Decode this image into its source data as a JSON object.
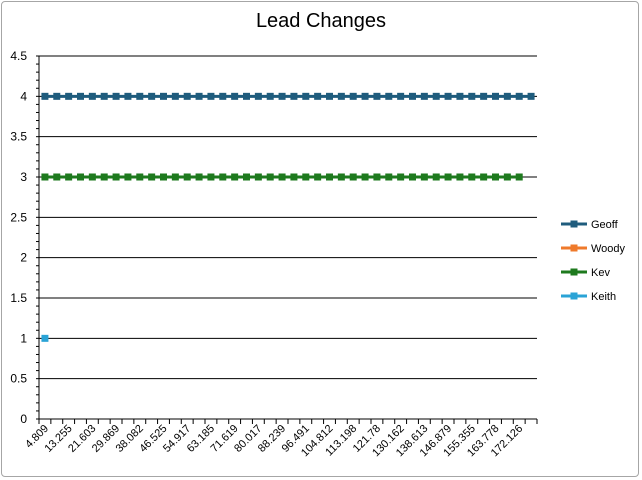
{
  "chart_data": {
    "type": "line",
    "title": "Lead Changes",
    "xlabel": "",
    "ylabel": "",
    "ylim": [
      0,
      4.5
    ],
    "y_ticks": [
      "0",
      "0.5",
      "1",
      "1.5",
      "2",
      "2.5",
      "3",
      "3.5",
      "4",
      "4.5"
    ],
    "x_ticks": [
      "4.809",
      "13.255",
      "21.603",
      "29.869",
      "38.082",
      "46.525",
      "54.917",
      "63.185",
      "71.619",
      "80.017",
      "88.239",
      "96.491",
      "104.812",
      "113.198",
      "121.78",
      "130.162",
      "138.613",
      "146.879",
      "155.355",
      "163.778",
      "172.126"
    ],
    "category_count": 42,
    "grid": "horizontal",
    "legend_position": "right",
    "series": [
      {
        "name": "Geoff",
        "color": "#1f5c7d",
        "marker": "square",
        "start_index": 0,
        "end_index": 41,
        "value": 4
      },
      {
        "name": "Woody",
        "color": "#ef7a2b",
        "marker": "square",
        "start_index": null,
        "end_index": null,
        "value": null
      },
      {
        "name": "Kev",
        "color": "#1e7a1e",
        "marker": "square",
        "start_index": 0,
        "end_index": 40,
        "value": 3
      },
      {
        "name": "Keith",
        "color": "#2aa3d6",
        "marker": "square",
        "start_index": 0,
        "end_index": 0,
        "value": 1
      }
    ]
  }
}
